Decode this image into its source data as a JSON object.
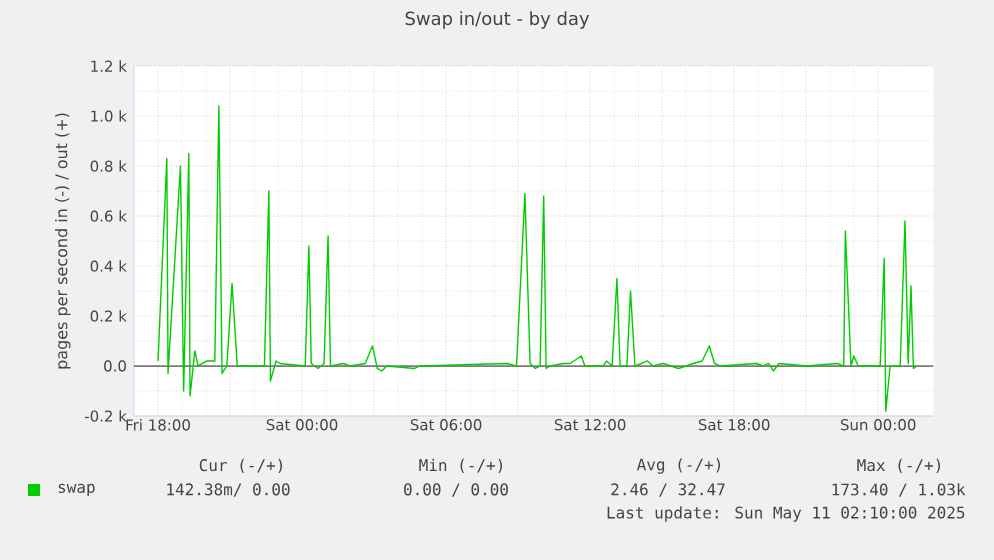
{
  "chart_data": {
    "type": "line",
    "title": "Swap in/out - by day",
    "ylabel": "pages per second in (-) / out (+)",
    "series": [
      {
        "name": "swap",
        "color": "#00cc00",
        "x": [
          "2025-05-09T18:00",
          "2025-05-09T18:22",
          "2025-05-09T18:25",
          "2025-05-09T18:56",
          "2025-05-09T19:04",
          "2025-05-09T19:17",
          "2025-05-09T19:20",
          "2025-05-09T19:32",
          "2025-05-09T19:40",
          "2025-05-09T20:02",
          "2025-05-09T20:22",
          "2025-05-09T20:32",
          "2025-05-09T20:40",
          "2025-05-09T20:52",
          "2025-05-09T21:05",
          "2025-05-09T21:18",
          "2025-05-09T22:26",
          "2025-05-09T22:37",
          "2025-05-09T22:41",
          "2025-05-09T22:55",
          "2025-05-09T23:05",
          "2025-05-10T00:08",
          "2025-05-10T00:17",
          "2025-05-10T00:23",
          "2025-05-10T00:40",
          "2025-05-10T00:55",
          "2025-05-10T01:05",
          "2025-05-10T01:11",
          "2025-05-10T01:43",
          "2025-05-10T02:00",
          "2025-05-10T02:38",
          "2025-05-10T02:56",
          "2025-05-10T03:08",
          "2025-05-10T03:19",
          "2025-05-10T03:32",
          "2025-05-10T04:41",
          "2025-05-10T04:55",
          "2025-05-10T08:32",
          "2025-05-10T08:56",
          "2025-05-10T09:17",
          "2025-05-10T09:30",
          "2025-05-10T09:43",
          "2025-05-10T09:55",
          "2025-05-10T10:04",
          "2025-05-10T10:10",
          "2025-05-10T10:20",
          "2025-05-10T10:53",
          "2025-05-10T11:10",
          "2025-05-10T11:38",
          "2025-05-10T11:47",
          "2025-05-10T12:33",
          "2025-05-10T12:41",
          "2025-05-10T12:55",
          "2025-05-10T13:07",
          "2025-05-10T13:15",
          "2025-05-10T13:32",
          "2025-05-10T13:41",
          "2025-05-10T13:52",
          "2025-05-10T14:08",
          "2025-05-10T14:23",
          "2025-05-10T14:37",
          "2025-05-10T15:03",
          "2025-05-10T15:41",
          "2025-05-10T16:18",
          "2025-05-10T16:40",
          "2025-05-10T16:58",
          "2025-05-10T17:11",
          "2025-05-10T17:25",
          "2025-05-10T18:56",
          "2025-05-10T19:13",
          "2025-05-10T19:26",
          "2025-05-10T19:38",
          "2025-05-10T19:52",
          "2025-05-10T21:02",
          "2025-05-10T22:17",
          "2025-05-10T22:34",
          "2025-05-10T22:38",
          "2025-05-10T22:52",
          "2025-05-10T22:59",
          "2025-05-10T23:10",
          "2025-05-11T00:05",
          "2025-05-11T00:15",
          "2025-05-11T00:19",
          "2025-05-11T00:30",
          "2025-05-11T00:55",
          "2025-05-11T01:07",
          "2025-05-11T01:15",
          "2025-05-11T01:22",
          "2025-05-11T01:28",
          "2025-05-11T01:37"
        ],
        "values": [
          20,
          830,
          -30,
          800,
          -100,
          850,
          -120,
          60,
          0,
          20,
          20,
          1040,
          -30,
          0,
          330,
          0,
          0,
          700,
          -60,
          20,
          10,
          0,
          480,
          10,
          -10,
          10,
          520,
          0,
          10,
          0,
          10,
          80,
          -10,
          -20,
          0,
          -10,
          0,
          10,
          0,
          690,
          10,
          -10,
          0,
          680,
          -10,
          0,
          10,
          10,
          40,
          0,
          0,
          20,
          0,
          350,
          0,
          0,
          300,
          0,
          10,
          20,
          0,
          10,
          -10,
          10,
          20,
          80,
          10,
          0,
          10,
          0,
          10,
          -20,
          10,
          0,
          10,
          0,
          540,
          0,
          40,
          0,
          0,
          430,
          -180,
          0,
          0,
          580,
          10,
          320,
          -10,
          0
        ]
      }
    ],
    "xlim": [
      "2025-05-09T17:00",
      "2025-05-11T02:18"
    ],
    "ylim": [
      -200,
      1200
    ],
    "xticks": [
      {
        "value": "2025-05-09T18:00",
        "label": "Fri 18:00"
      },
      {
        "value": "2025-05-09T21:00",
        "label": null
      },
      {
        "value": "2025-05-10T00:00",
        "label": "Sat 00:00"
      },
      {
        "value": "2025-05-10T03:00",
        "label": null
      },
      {
        "value": "2025-05-10T06:00",
        "label": "Sat 06:00"
      },
      {
        "value": "2025-05-10T09:00",
        "label": null
      },
      {
        "value": "2025-05-10T12:00",
        "label": "Sat 12:00"
      },
      {
        "value": "2025-05-10T15:00",
        "label": null
      },
      {
        "value": "2025-05-10T18:00",
        "label": "Sat 18:00"
      },
      {
        "value": "2025-05-10T21:00",
        "label": null
      },
      {
        "value": "2025-05-11T00:00",
        "label": "Sun 00:00"
      }
    ],
    "yticks": [
      {
        "value": -200,
        "label": "-0.2 k"
      },
      {
        "value": 0,
        "label": "0.0"
      },
      {
        "value": 200,
        "label": "0.2 k"
      },
      {
        "value": 400,
        "label": "0.4 k"
      },
      {
        "value": 600,
        "label": "0.6 k"
      },
      {
        "value": 800,
        "label": "0.8 k"
      },
      {
        "value": 1000,
        "label": "1.0 k"
      },
      {
        "value": 1200,
        "label": "1.2 k"
      }
    ],
    "ref_lines": [
      {
        "axis": "y",
        "value": 0,
        "color": "#000000"
      }
    ],
    "grid": true,
    "legend": "bottom",
    "marker": "none",
    "line_style": "solid",
    "annotations": [
      "Cur (-/+)",
      "Min (-/+)",
      "Avg (-/+)",
      "Max (-/+)",
      "142.38m/ 0.00",
      "0.00 / 0.00",
      "2.46 / 32.47",
      "173.40 / 1.03k",
      "Last update: Sun May 11 02:10:00 2025"
    ]
  }
}
